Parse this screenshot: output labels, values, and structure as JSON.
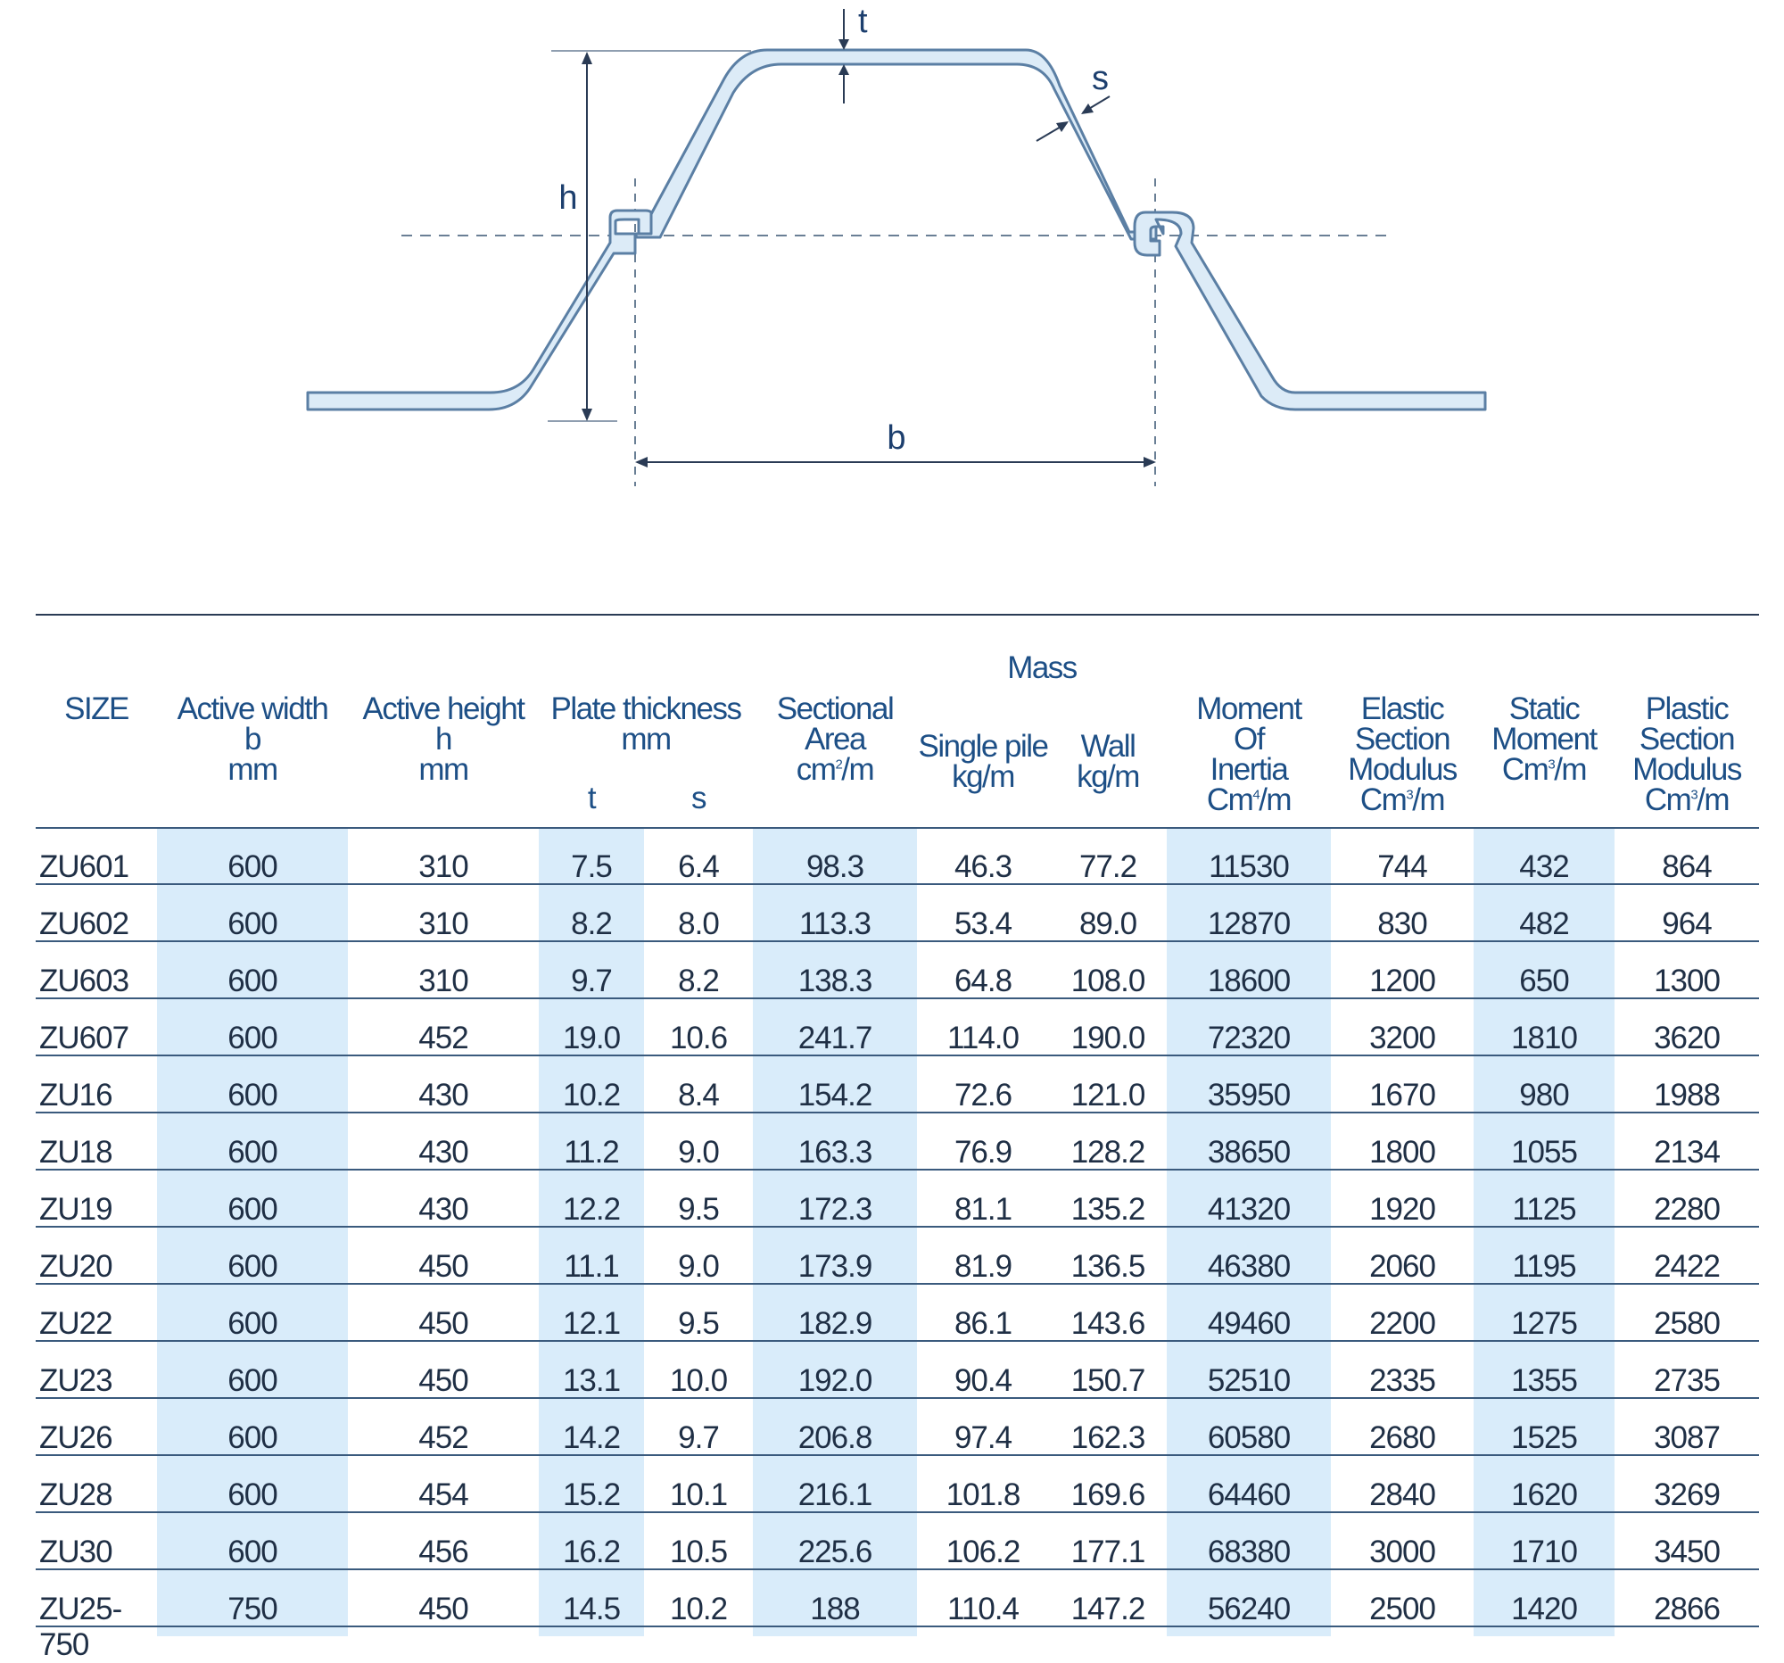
{
  "diagram": {
    "labels": {
      "t": "t",
      "s": "s",
      "h": "h",
      "b": "b"
    }
  },
  "table": {
    "headers": {
      "size": "SIZE",
      "active_width": [
        "Active width",
        "b",
        "mm"
      ],
      "active_height": [
        "Active height",
        "h",
        "mm"
      ],
      "plate_thickness": [
        "Plate thickness",
        "mm"
      ],
      "plate_t": "t",
      "plate_s": "s",
      "sectional_area": [
        "Sectional",
        "Area",
        "cm²/m"
      ],
      "mass": "Mass",
      "mass_single": [
        "Single pile",
        "kg/m"
      ],
      "mass_wall": [
        "Wall",
        "kg/m"
      ],
      "moment_inertia": [
        "Moment",
        "Of",
        "Inertia",
        "Cm⁴/m"
      ],
      "elastic_modulus": [
        "Elastic",
        "Section",
        "Modulus",
        "Cm³/m"
      ],
      "static_moment": [
        "Static",
        "Moment",
        "Cm³/m"
      ],
      "plastic_modulus": [
        "Plastic",
        "Section",
        "Modulus",
        "Cm³/m"
      ]
    },
    "rows": [
      [
        "ZU601",
        "600",
        "310",
        "7.5",
        "6.4",
        "98.3",
        "46.3",
        "77.2",
        "11530",
        "744",
        "432",
        "864"
      ],
      [
        "ZU602",
        "600",
        "310",
        "8.2",
        "8.0",
        "113.3",
        "53.4",
        "89.0",
        "12870",
        "830",
        "482",
        "964"
      ],
      [
        "ZU603",
        "600",
        "310",
        "9.7",
        "8.2",
        "138.3",
        "64.8",
        "108.0",
        "18600",
        "1200",
        "650",
        "1300"
      ],
      [
        "ZU607",
        "600",
        "452",
        "19.0",
        "10.6",
        "241.7",
        "114.0",
        "190.0",
        "72320",
        "3200",
        "1810",
        "3620"
      ],
      [
        "ZU16",
        "600",
        "430",
        "10.2",
        "8.4",
        "154.2",
        "72.6",
        "121.0",
        "35950",
        "1670",
        "980",
        "1988"
      ],
      [
        "ZU18",
        "600",
        "430",
        "11.2",
        "9.0",
        "163.3",
        "76.9",
        "128.2",
        "38650",
        "1800",
        "1055",
        "2134"
      ],
      [
        "ZU19",
        "600",
        "430",
        "12.2",
        "9.5",
        "172.3",
        "81.1",
        "135.2",
        "41320",
        "1920",
        "1125",
        "2280"
      ],
      [
        "ZU20",
        "600",
        "450",
        "11.1",
        "9.0",
        "173.9",
        "81.9",
        "136.5",
        "46380",
        "2060",
        "1195",
        "2422"
      ],
      [
        "ZU22",
        "600",
        "450",
        "12.1",
        "9.5",
        "182.9",
        "86.1",
        "143.6",
        "49460",
        "2200",
        "1275",
        "2580"
      ],
      [
        "ZU23",
        "600",
        "450",
        "13.1",
        "10.0",
        "192.0",
        "90.4",
        "150.7",
        "52510",
        "2335",
        "1355",
        "2735"
      ],
      [
        "ZU26",
        "600",
        "452",
        "14.2",
        "9.7",
        "206.8",
        "97.4",
        "162.3",
        "60580",
        "2680",
        "1525",
        "3087"
      ],
      [
        "ZU28",
        "600",
        "454",
        "15.2",
        "10.1",
        "216.1",
        "101.8",
        "169.6",
        "64460",
        "2840",
        "1620",
        "3269"
      ],
      [
        "ZU30",
        "600",
        "456",
        "16.2",
        "10.5",
        "225.6",
        "106.2",
        "177.1",
        "68380",
        "3000",
        "1710",
        "3450"
      ],
      [
        "ZU25-750",
        "750",
        "450",
        "14.5",
        "10.2",
        "188",
        "110.4",
        "147.2",
        "56240",
        "2500",
        "1420",
        "2866"
      ]
    ]
  },
  "colors": {
    "shade": "#d9ecfa",
    "profile_fill": "#dcebf7",
    "profile_stroke": "#5b7fa4",
    "text": "#1d4f86"
  }
}
